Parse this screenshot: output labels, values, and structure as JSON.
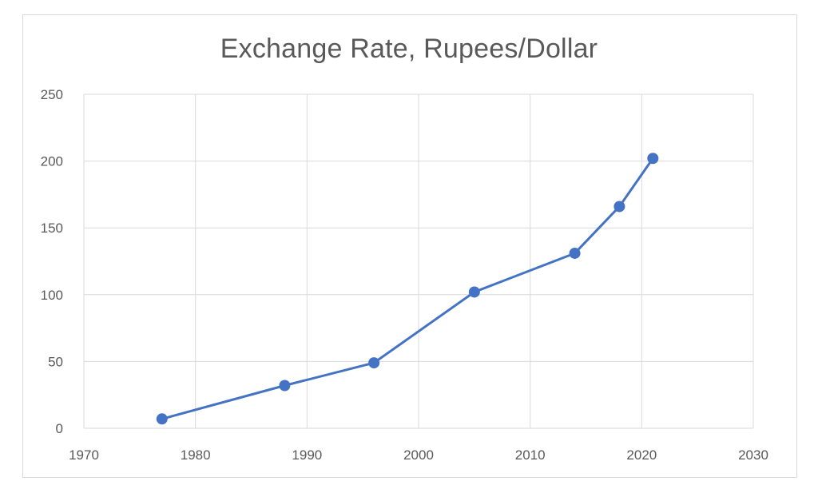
{
  "chart_data": {
    "type": "scatter",
    "title": "Exchange Rate, Rupees/Dollar",
    "xlabel": "",
    "ylabel": "",
    "xlim": [
      1970,
      2030
    ],
    "ylim": [
      0,
      250
    ],
    "x_ticks": [
      "1970",
      "1980",
      "1990",
      "2000",
      "2010",
      "2020",
      "2030"
    ],
    "y_ticks": [
      "0",
      "50",
      "100",
      "150",
      "200",
      "250"
    ],
    "grid": true,
    "legend": "none",
    "line_color": "#4472c4",
    "series": [
      {
        "points": [
          {
            "x": 1977,
            "y": 7
          },
          {
            "x": 1988,
            "y": 32
          },
          {
            "x": 1996,
            "y": 49
          },
          {
            "x": 2005,
            "y": 102
          },
          {
            "x": 2014,
            "y": 131
          },
          {
            "x": 2018,
            "y": 166
          },
          {
            "x": 2021,
            "y": 202
          }
        ]
      }
    ]
  }
}
